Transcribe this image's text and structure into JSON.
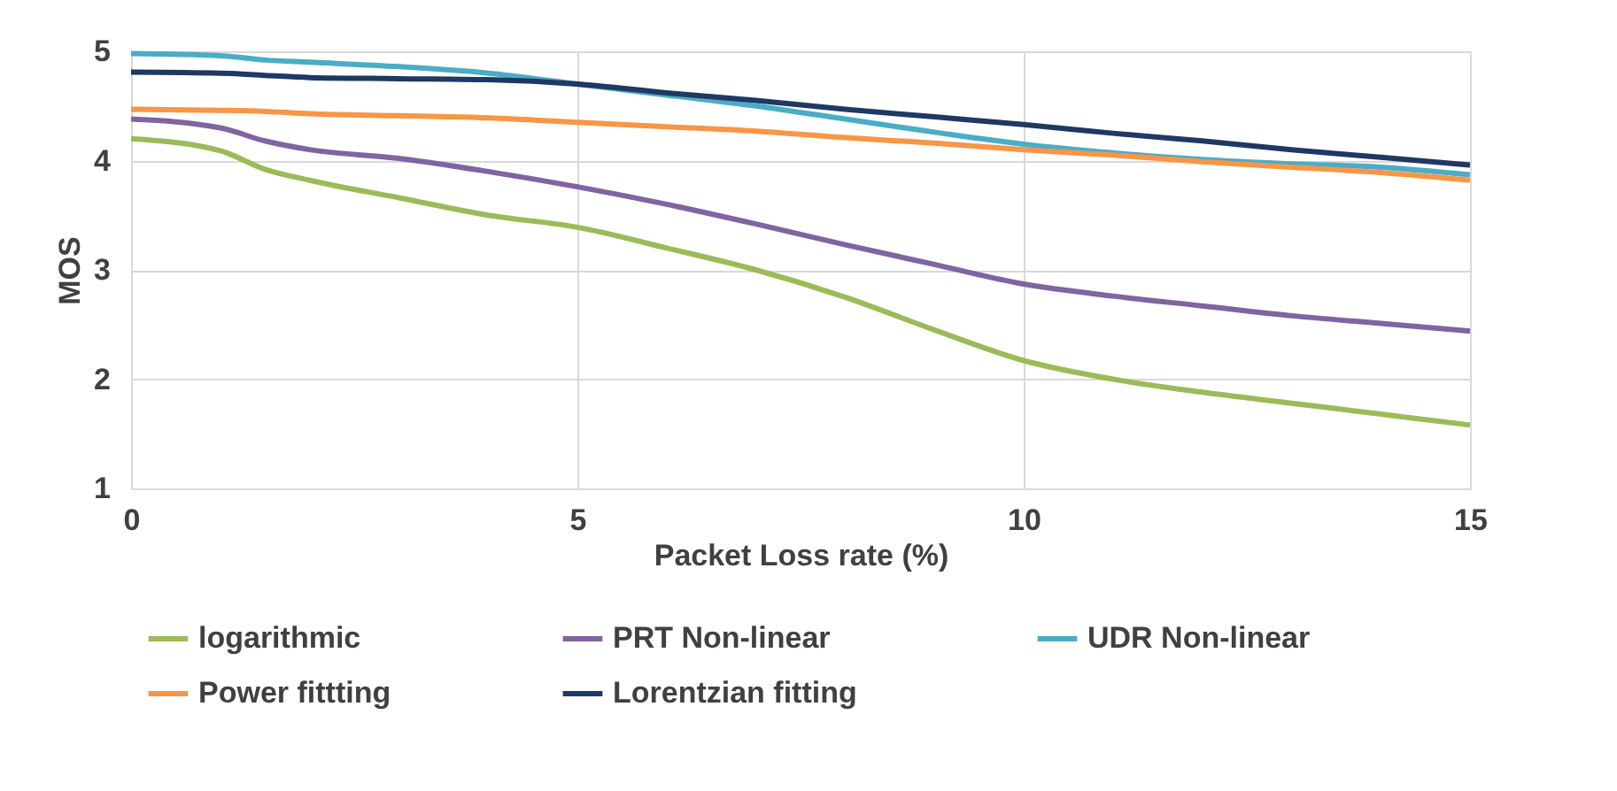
{
  "chart_data": {
    "type": "line",
    "xlabel": "Packet Loss rate (%)",
    "ylabel": "MOS",
    "x": [
      0,
      1,
      1.5,
      2,
      3,
      4,
      5,
      6,
      7,
      8,
      9,
      10,
      11,
      12,
      13,
      14,
      15
    ],
    "series": [
      {
        "name": "logarithmic",
        "color": "#9bbb59",
        "values": [
          4.2,
          4.09,
          3.92,
          3.82,
          3.66,
          3.5,
          3.39,
          3.2,
          3.0,
          2.75,
          2.45,
          2.17,
          2.0,
          1.88,
          1.78,
          1.68,
          1.58
        ]
      },
      {
        "name": "PRT Non-linear",
        "color": "#8064a2",
        "values": [
          4.38,
          4.3,
          4.18,
          4.1,
          4.02,
          3.9,
          3.76,
          3.6,
          3.42,
          3.23,
          3.05,
          2.87,
          2.76,
          2.67,
          2.58,
          2.51,
          2.44
        ]
      },
      {
        "name": "UDR Non-linear",
        "color": "#4bacc6",
        "values": [
          4.98,
          4.96,
          4.92,
          4.9,
          4.86,
          4.8,
          4.7,
          4.6,
          4.5,
          4.38,
          4.26,
          4.15,
          4.07,
          4.01,
          3.97,
          3.94,
          3.87
        ]
      },
      {
        "name": "Power fittting",
        "color": "#f79646",
        "values": [
          4.47,
          4.46,
          4.45,
          4.43,
          4.41,
          4.39,
          4.35,
          4.31,
          4.27,
          4.21,
          4.16,
          4.1,
          4.05,
          3.99,
          3.94,
          3.89,
          3.82
        ]
      },
      {
        "name": "Lorentzian  fitting",
        "color": "#1f3864",
        "values": [
          4.81,
          4.8,
          4.78,
          4.76,
          4.75,
          4.74,
          4.7,
          4.62,
          4.55,
          4.47,
          4.4,
          4.33,
          4.25,
          4.18,
          4.1,
          4.03,
          3.96
        ]
      }
    ],
    "xlim": [
      0,
      15
    ],
    "xticks": [
      0,
      5,
      10,
      15
    ],
    "ylim": [
      1,
      5
    ],
    "yticks": [
      1,
      2,
      3,
      4,
      5
    ],
    "grid": true,
    "legend": "bottom",
    "marker": "none",
    "line_style": "solid"
  }
}
